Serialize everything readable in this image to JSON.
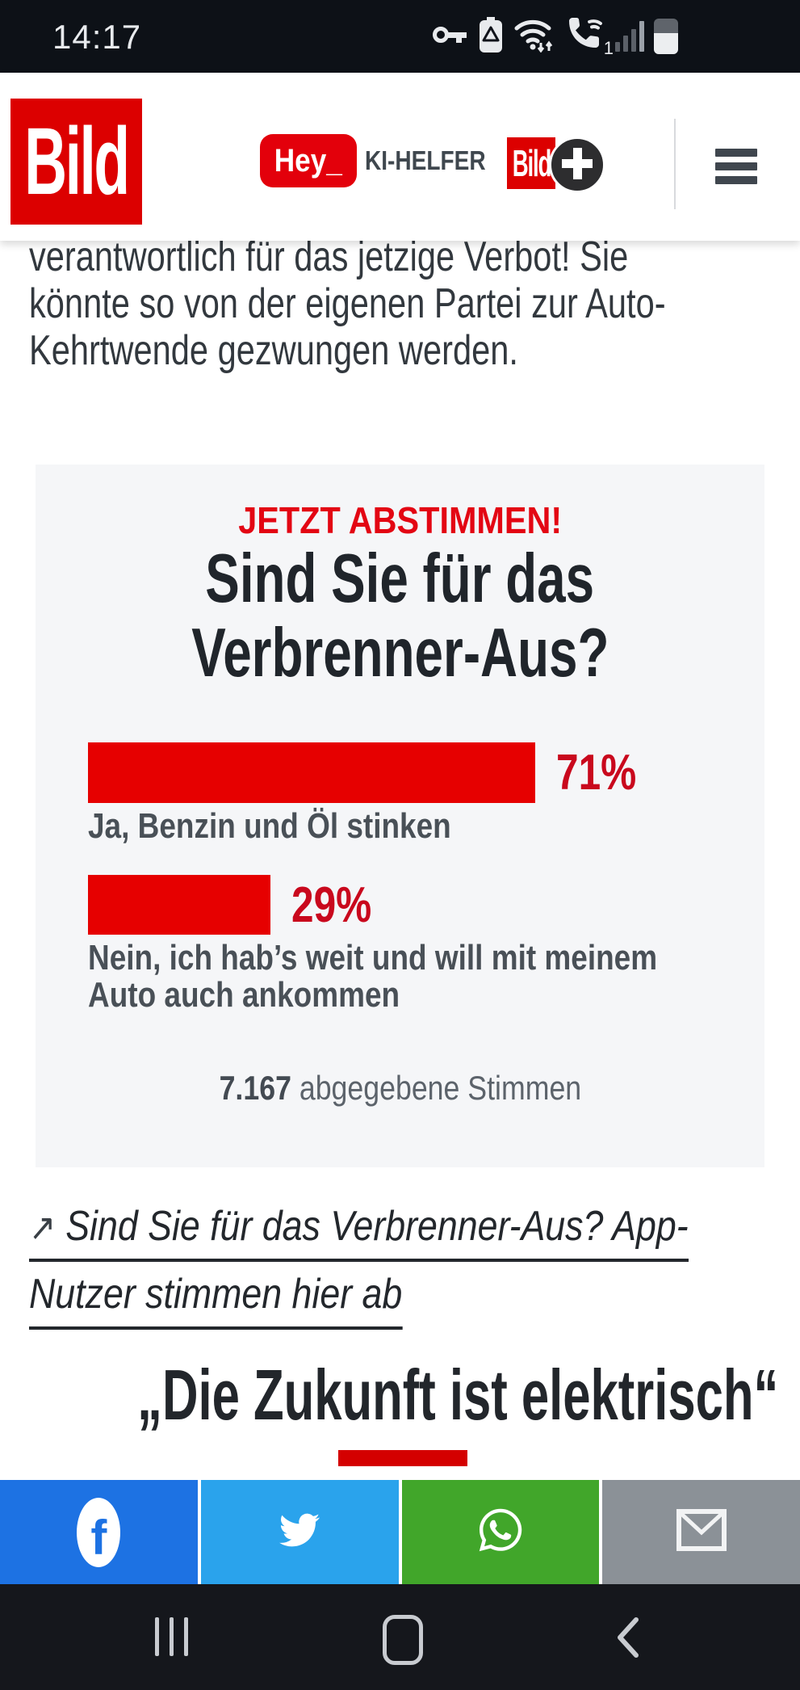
{
  "status_bar": {
    "time": "14:17",
    "sim_number": "1",
    "bg_color": "#0d1117",
    "icons": [
      "key-icon",
      "battery-saver-icon",
      "wifi-icon",
      "wifi-calling-icon",
      "signal-strength-icon",
      "battery-icon"
    ]
  },
  "header": {
    "bild_logo_text": "Bild",
    "hey_button_label": "Hey_",
    "ki_helfer_label": "KI-HELFER",
    "bildplus_logo_text": "Bild",
    "brand_red": "#dc0000"
  },
  "article": {
    "paragraph_lines": [
      "verantwortlich für das jetzige Verbot! Sie",
      "könnte so von der eigenen Partei zur Auto-",
      "Kehrtwende gezwungen werden."
    ]
  },
  "poll": {
    "kicker": "JETZT ABSTIMMEN!",
    "kicker_color": "#e30613",
    "question_lines": [
      "Sind Sie für das",
      "Verbrenner-Aus?"
    ],
    "bar_color": "#e60000",
    "box_bg": "#f5f6f8",
    "options": [
      {
        "pct": 71,
        "percent_label": "71%",
        "label_lines": [
          "Ja, Benzin und Öl stinken",
          ""
        ]
      },
      {
        "pct": 29,
        "percent_label": "29%",
        "label_lines": [
          "Nein, ich hab’s weit und will mit meinem",
          "Auto auch ankommen"
        ]
      }
    ],
    "votes_value": "7.167",
    "votes_suffix": " abgegebene Stimmen"
  },
  "app_link": {
    "arrow": "↗",
    "line1": "Sind Sie für das Verbrenner-Aus? App-",
    "line2": "Nutzer stimmen hier ab"
  },
  "next_section": {
    "heading": "„Die Zukunft ist elektrisch“",
    "rule_color": "#d40000"
  },
  "share_bar": {
    "networks": [
      {
        "name": "facebook",
        "color": "#1d72e3"
      },
      {
        "name": "twitter",
        "color": "#2aa3ec"
      },
      {
        "name": "whatsapp",
        "color": "#41a62a"
      },
      {
        "name": "email",
        "color": "#8b9197"
      }
    ]
  },
  "nav_bar": {
    "buttons": [
      "recents",
      "home",
      "back"
    ],
    "bg_color": "#15171c"
  },
  "chart_data": {
    "type": "bar",
    "orientation": "horizontal",
    "title": "Sind Sie für das Verbrenner-Aus?",
    "categories": [
      "Ja, Benzin und Öl stinken",
      "Nein, ich hab’s weit und will mit meinem Auto auch ankommen"
    ],
    "values": [
      71,
      29
    ],
    "unit": "%",
    "xlim": [
      0,
      100
    ],
    "annotation": "7.167 abgegebene Stimmen",
    "bar_color": "#e60000"
  }
}
